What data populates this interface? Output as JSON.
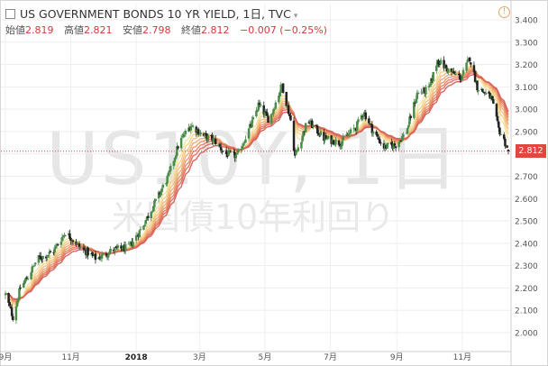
{
  "header": {
    "title": "US GOVERNMENT BONDS 10 YR YIELD, 1日, TVC",
    "ohlc": [
      {
        "label": "始値",
        "value": "2.819"
      },
      {
        "label": "高値",
        "value": "2.821"
      },
      {
        "label": "安値",
        "value": "2.798"
      },
      {
        "label": "終値",
        "value": "2.812"
      },
      {
        "label": "",
        "value": "−0.007 (−0.25%)"
      }
    ]
  },
  "watermark": {
    "symbol": "US10Y, 1日",
    "name": "米国債10年利回り"
  },
  "last_price_label": "2.812",
  "colors": {
    "up": "#4c8c4a",
    "down": "#222222",
    "last": "#e0473d",
    "ribbon": [
      "#f7e29a",
      "#f6d089",
      "#f3bd7c",
      "#efa971",
      "#ea9569",
      "#e48262",
      "#dd6f5c",
      "#d65d56"
    ]
  },
  "chart_data": {
    "type": "candlestick",
    "title": "US GOVERNMENT BONDS 10 YR YIELD",
    "timeframe": "1日",
    "y_ticks": [
      "3.400",
      "3.300",
      "3.200",
      "3.100",
      "3.000",
      "2.900",
      "2.800",
      "2.700",
      "2.600",
      "2.500",
      "2.400",
      "2.300",
      "2.200",
      "2.100",
      "2.000"
    ],
    "ylim": [
      1.95,
      3.45
    ],
    "x_ticks": [
      {
        "label": "9月",
        "x": "2017-09-01"
      },
      {
        "label": "11月",
        "x": "2017-11-01"
      },
      {
        "label": "2018",
        "x": "2018-01-01"
      },
      {
        "label": "3月",
        "x": "2018-03-01"
      },
      {
        "label": "5月",
        "x": "2018-05-01"
      },
      {
        "label": "7月",
        "x": "2018-07-01"
      },
      {
        "label": "9月",
        "x": "2018-09-01"
      },
      {
        "label": "11月",
        "x": "2018-11-01"
      }
    ],
    "xlim": [
      "2017-09-01",
      "2018-12-14"
    ],
    "close_anchors": [
      [
        "2017-09-01",
        2.17
      ],
      [
        "2017-09-08",
        2.07
      ],
      [
        "2017-09-15",
        2.2
      ],
      [
        "2017-09-22",
        2.25
      ],
      [
        "2017-10-01",
        2.33
      ],
      [
        "2017-10-15",
        2.36
      ],
      [
        "2017-10-27",
        2.45
      ],
      [
        "2017-11-10",
        2.38
      ],
      [
        "2017-11-25",
        2.33
      ],
      [
        "2017-12-10",
        2.37
      ],
      [
        "2017-12-25",
        2.38
      ],
      [
        "2018-01-05",
        2.46
      ],
      [
        "2018-01-15",
        2.55
      ],
      [
        "2018-01-31",
        2.7
      ],
      [
        "2018-02-10",
        2.85
      ],
      [
        "2018-02-21",
        2.93
      ],
      [
        "2018-03-05",
        2.88
      ],
      [
        "2018-03-15",
        2.86
      ],
      [
        "2018-03-25",
        2.8
      ],
      [
        "2018-04-05",
        2.79
      ],
      [
        "2018-04-20",
        2.95
      ],
      [
        "2018-04-25",
        3.02
      ],
      [
        "2018-05-05",
        2.95
      ],
      [
        "2018-05-17",
        3.11
      ],
      [
        "2018-05-25",
        2.95
      ],
      [
        "2018-05-29",
        2.79
      ],
      [
        "2018-06-10",
        2.95
      ],
      [
        "2018-06-25",
        2.87
      ],
      [
        "2018-07-10",
        2.85
      ],
      [
        "2018-07-25",
        2.92
      ],
      [
        "2018-08-01",
        2.99
      ],
      [
        "2018-08-10",
        2.9
      ],
      [
        "2018-08-20",
        2.83
      ],
      [
        "2018-08-31",
        2.84
      ],
      [
        "2018-09-10",
        2.9
      ],
      [
        "2018-09-20",
        3.07
      ],
      [
        "2018-10-01",
        3.09
      ],
      [
        "2018-10-09",
        3.22
      ],
      [
        "2018-10-20",
        3.17
      ],
      [
        "2018-10-31",
        3.14
      ],
      [
        "2018-11-08",
        3.23
      ],
      [
        "2018-11-15",
        3.1
      ],
      [
        "2018-11-28",
        3.05
      ],
      [
        "2018-12-05",
        2.91
      ],
      [
        "2018-12-10",
        2.86
      ],
      [
        "2018-12-14",
        2.812
      ]
    ],
    "last": {
      "open": 2.819,
      "high": 2.821,
      "low": 2.798,
      "close": 2.812,
      "change": -0.007,
      "change_pct": -0.25
    }
  }
}
